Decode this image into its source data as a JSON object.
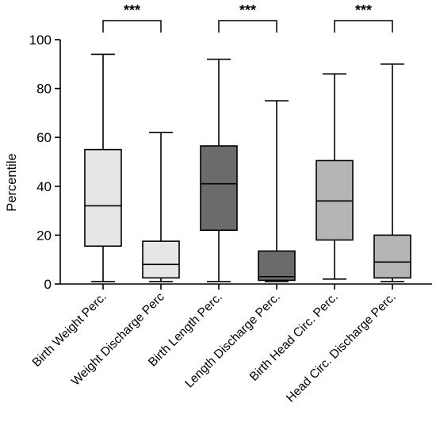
{
  "chart_data": {
    "type": "box",
    "ylabel": "Percentile",
    "xlabel": "",
    "ylim": [
      0,
      100
    ],
    "yticks": [
      0,
      20,
      40,
      60,
      80,
      100
    ],
    "grid": false,
    "categories": [
      "Birth Weight Perc.",
      "Weight Discharge Perc",
      "Birth Length Perc.",
      "Length Discharge Perc.",
      "Birth Head Circ. Perc.",
      "Head Circ. Discharge Perc."
    ],
    "boxes": [
      {
        "category": "Birth Weight Perc.",
        "min": 1,
        "q1": 15.5,
        "median": 32,
        "q3": 55,
        "max": 94,
        "color": "#e6e6e6"
      },
      {
        "category": "Weight Discharge Perc",
        "min": 1,
        "q1": 2.5,
        "median": 8,
        "q3": 17.5,
        "max": 62,
        "color": "#e6e6e6"
      },
      {
        "category": "Birth Length Perc.",
        "min": 1,
        "q1": 22,
        "median": 41,
        "q3": 56.5,
        "max": 92,
        "color": "#6b6b6b"
      },
      {
        "category": "Length Discharge Perc.",
        "min": 1,
        "q1": 1.5,
        "median": 3,
        "q3": 13.5,
        "max": 75,
        "color": "#6b6b6b"
      },
      {
        "category": "Birth Head Circ. Perc.",
        "min": 2,
        "q1": 18,
        "median": 34,
        "q3": 50.5,
        "max": 86,
        "color": "#b5b5b5"
      },
      {
        "category": "Head Circ. Discharge Perc.",
        "min": 1,
        "q1": 2.5,
        "median": 9,
        "q3": 20,
        "max": 90,
        "color": "#b5b5b5"
      }
    ],
    "significance": [
      {
        "from": 0,
        "to": 1,
        "label": "***"
      },
      {
        "from": 2,
        "to": 3,
        "label": "***"
      },
      {
        "from": 4,
        "to": 5,
        "label": "***"
      }
    ]
  }
}
